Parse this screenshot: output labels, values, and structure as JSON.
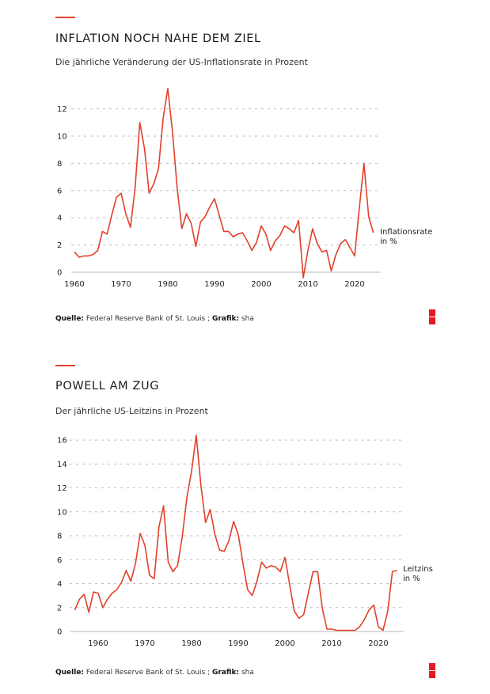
{
  "colors": {
    "accent": "#e2402a",
    "line": "#e2402a",
    "logo": "#e21b24"
  },
  "charts": [
    {
      "title": "INFLATION NOCH NAHE DEM ZIEL",
      "subtitle": "Die jährliche Veränderung der US-Inflationsrate in Prozent",
      "source_label": "Quelle:",
      "source_text": " Federal Reserve Bank of St. Louis ; ",
      "credit_label": "Grafik:",
      "credit_text": " sha",
      "series_label_1": "Inflationsrate",
      "series_label_2": "in %"
    },
    {
      "title": "POWELL AM ZUG",
      "subtitle": "Der jährliche US-Leitzins in Prozent",
      "source_label": "Quelle:",
      "source_text": " Federal Reserve Bank of St. Louis ; ",
      "credit_label": "Grafik:",
      "credit_text": " sha",
      "series_label_1": "Leitzins",
      "series_label_2": "in %"
    }
  ],
  "chart_data": [
    {
      "type": "line",
      "title": "INFLATION NOCH NAHE DEM ZIEL",
      "subtitle": "Die jährliche Veränderung der US-Inflationsrate in Prozent",
      "xlabel": "",
      "ylabel": "",
      "grid": true,
      "legend": "right-end label",
      "xlim": [
        1960,
        2024
      ],
      "ylim": [
        0,
        13.5
      ],
      "x_ticks": [
        1960,
        1970,
        1980,
        1990,
        2000,
        2010,
        2020
      ],
      "y_ticks": [
        0,
        2,
        4,
        6,
        8,
        10,
        12
      ],
      "series": [
        {
          "name": "Inflationsrate in %",
          "x": [
            1960,
            1961,
            1962,
            1963,
            1964,
            1965,
            1966,
            1967,
            1968,
            1969,
            1970,
            1971,
            1972,
            1973,
            1974,
            1975,
            1976,
            1977,
            1978,
            1979,
            1980,
            1981,
            1982,
            1983,
            1984,
            1985,
            1986,
            1987,
            1988,
            1989,
            1990,
            1991,
            1992,
            1993,
            1994,
            1995,
            1996,
            1997,
            1998,
            1999,
            2000,
            2001,
            2002,
            2003,
            2004,
            2005,
            2006,
            2007,
            2008,
            2009,
            2010,
            2011,
            2012,
            2013,
            2014,
            2015,
            2016,
            2017,
            2018,
            2019,
            2020,
            2021,
            2022,
            2023,
            2024
          ],
          "values": [
            1.5,
            1.1,
            1.2,
            1.2,
            1.3,
            1.6,
            3.0,
            2.8,
            4.2,
            5.5,
            5.8,
            4.3,
            3.3,
            6.2,
            11.0,
            9.1,
            5.8,
            6.5,
            7.6,
            11.3,
            13.5,
            10.3,
            6.2,
            3.2,
            4.3,
            3.6,
            1.9,
            3.7,
            4.1,
            4.8,
            5.4,
            4.2,
            3.0,
            3.0,
            2.6,
            2.8,
            2.9,
            2.3,
            1.6,
            2.2,
            3.4,
            2.8,
            1.6,
            2.3,
            2.7,
            3.4,
            3.2,
            2.9,
            3.8,
            -0.4,
            1.6,
            3.2,
            2.1,
            1.5,
            1.6,
            0.1,
            1.3,
            2.1,
            2.4,
            1.8,
            1.2,
            4.7,
            8.0,
            4.1,
            2.9
          ]
        }
      ]
    },
    {
      "type": "line",
      "title": "POWELL AM ZUG",
      "subtitle": "Der jährliche US-Leitzins in Prozent",
      "xlabel": "",
      "ylabel": "",
      "grid": true,
      "legend": "right-end label",
      "xlim": [
        1955,
        2024
      ],
      "ylim": [
        0,
        16.4
      ],
      "x_ticks": [
        1960,
        1970,
        1980,
        1990,
        2000,
        2010,
        2020
      ],
      "y_ticks": [
        0,
        2,
        4,
        6,
        8,
        10,
        12,
        14,
        16
      ],
      "series": [
        {
          "name": "Leitzins in %",
          "x": [
            1955,
            1956,
            1957,
            1958,
            1959,
            1960,
            1961,
            1962,
            1963,
            1964,
            1965,
            1966,
            1967,
            1968,
            1969,
            1970,
            1971,
            1972,
            1973,
            1974,
            1975,
            1976,
            1977,
            1978,
            1979,
            1980,
            1981,
            1982,
            1983,
            1984,
            1985,
            1986,
            1987,
            1988,
            1989,
            1990,
            1991,
            1992,
            1993,
            1994,
            1995,
            1996,
            1997,
            1998,
            1999,
            2000,
            2001,
            2002,
            2003,
            2004,
            2005,
            2006,
            2007,
            2008,
            2009,
            2010,
            2011,
            2012,
            2013,
            2014,
            2015,
            2016,
            2017,
            2018,
            2019,
            2020,
            2021,
            2022,
            2023,
            2024
          ],
          "values": [
            1.8,
            2.7,
            3.1,
            1.6,
            3.3,
            3.2,
            2.0,
            2.7,
            3.2,
            3.5,
            4.1,
            5.1,
            4.2,
            5.7,
            8.2,
            7.2,
            4.7,
            4.4,
            8.7,
            10.5,
            5.8,
            5.0,
            5.5,
            7.9,
            11.2,
            13.4,
            16.4,
            12.2,
            9.1,
            10.2,
            8.1,
            6.8,
            6.7,
            7.6,
            9.2,
            8.1,
            5.7,
            3.5,
            3.0,
            4.2,
            5.8,
            5.3,
            5.5,
            5.4,
            5.0,
            6.2,
            3.9,
            1.7,
            1.1,
            1.4,
            3.2,
            5.0,
            5.0,
            1.9,
            0.2,
            0.2,
            0.1,
            0.1,
            0.1,
            0.1,
            0.1,
            0.4,
            1.0,
            1.8,
            2.2,
            0.4,
            0.1,
            1.7,
            5.0,
            5.1
          ]
        }
      ]
    }
  ]
}
